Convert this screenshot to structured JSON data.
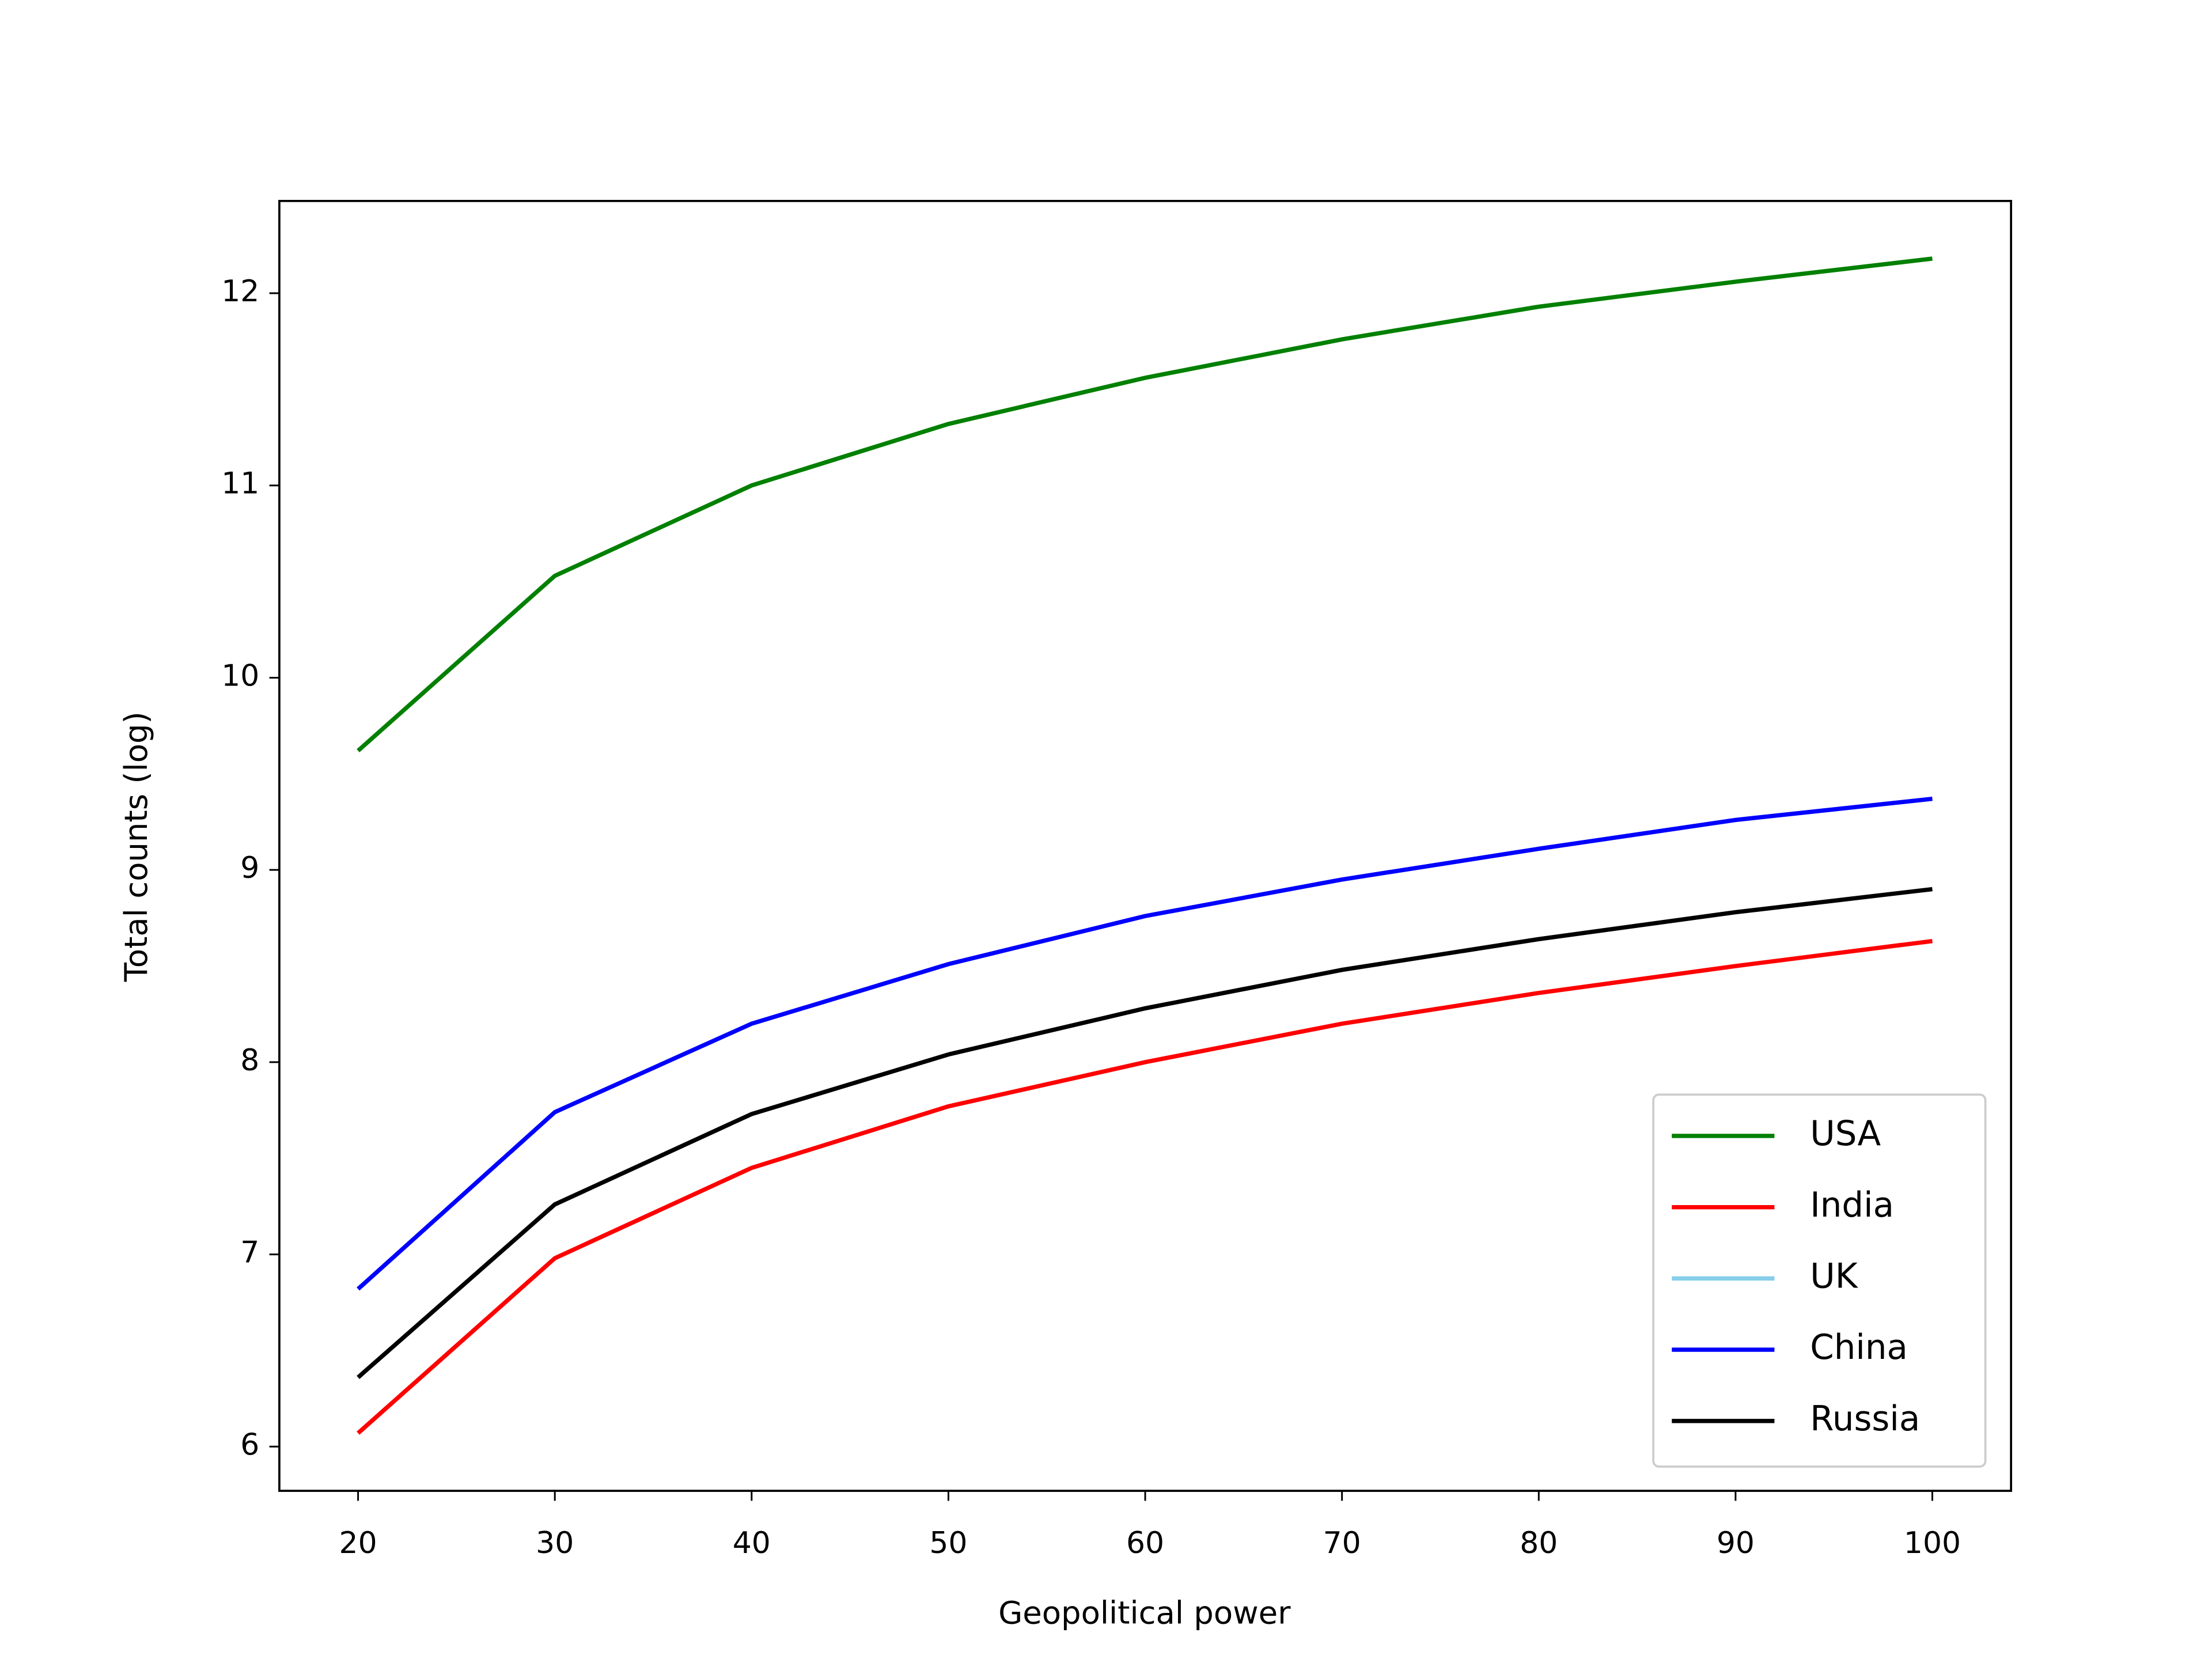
{
  "chart_data": {
    "type": "line",
    "xlabel": "Geopolitical power",
    "ylabel": "Total counts (log)",
    "x": [
      20,
      30,
      40,
      50,
      60,
      70,
      80,
      90,
      100
    ],
    "series": [
      {
        "name": "USA",
        "color": "#008000",
        "values": [
          9.62,
          10.53,
          11.0,
          11.32,
          11.56,
          11.76,
          11.93,
          12.06,
          12.18
        ]
      },
      {
        "name": "India",
        "color": "#ff0000",
        "values": [
          6.07,
          6.98,
          7.45,
          7.77,
          8.0,
          8.2,
          8.36,
          8.5,
          8.63
        ]
      },
      {
        "name": "UK",
        "color": "#87ceeb",
        "values": [
          null,
          null,
          null,
          null,
          null,
          null,
          null,
          null,
          null
        ]
      },
      {
        "name": "China",
        "color": "#0000ff",
        "values": [
          6.82,
          7.74,
          8.2,
          8.51,
          8.76,
          8.95,
          9.11,
          9.26,
          9.37
        ]
      },
      {
        "name": "Russia",
        "color": "#000000",
        "values": [
          6.36,
          7.26,
          7.73,
          8.04,
          8.28,
          8.48,
          8.64,
          8.78,
          8.9
        ]
      }
    ],
    "xlim": [
      16,
      104
    ],
    "ylim": [
      5.77,
      12.48
    ],
    "xticks": [
      20,
      30,
      40,
      50,
      60,
      70,
      80,
      90,
      100
    ],
    "yticks": [
      6,
      7,
      8,
      9,
      10,
      11,
      12
    ],
    "grid": false,
    "legend": "lower right"
  }
}
